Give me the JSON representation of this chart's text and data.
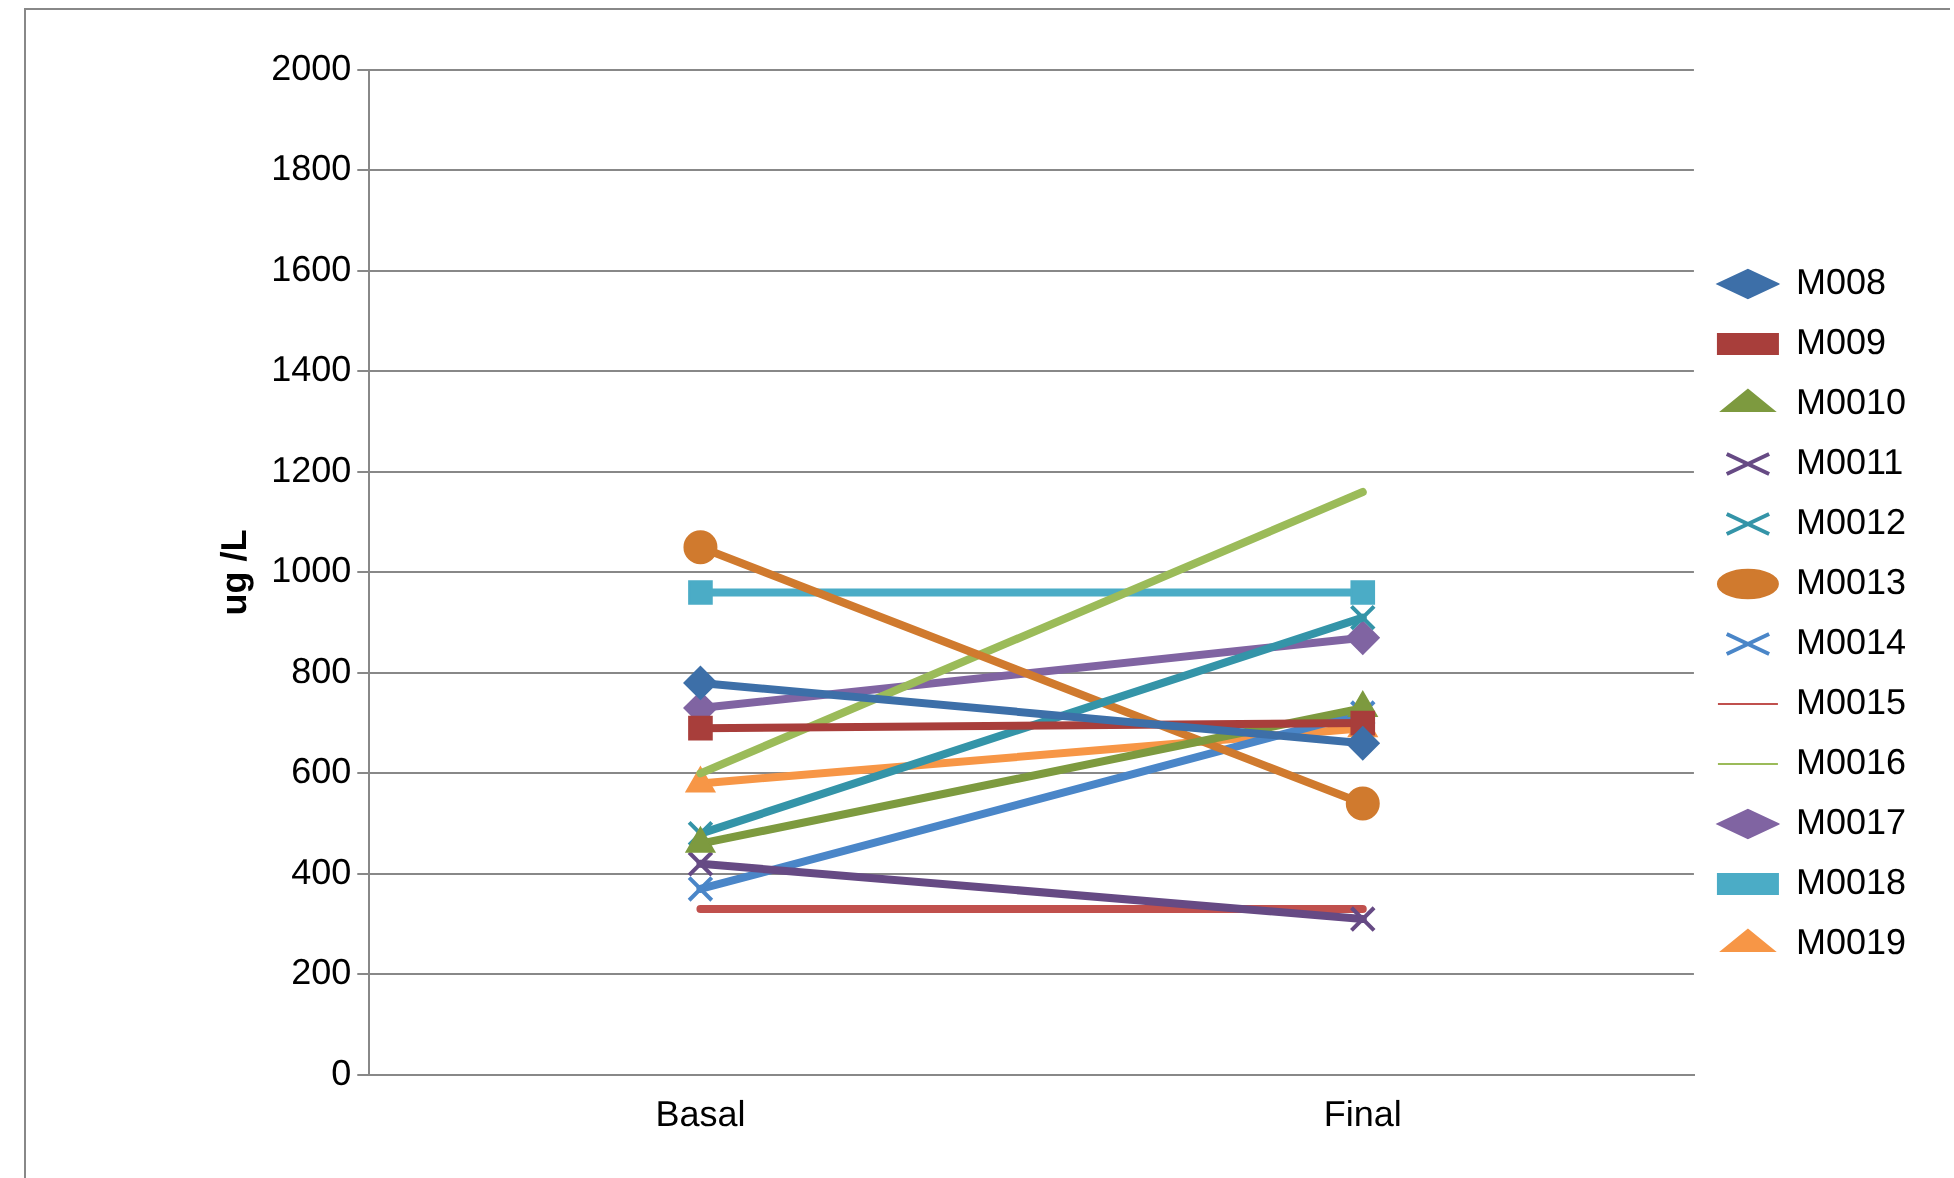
{
  "chart_data": {
    "type": "line",
    "ylabel": "ug /L",
    "categories": [
      "Basal",
      "Final"
    ],
    "ylim": [
      0,
      2000
    ],
    "yticks": [
      0,
      200,
      400,
      600,
      800,
      1000,
      1200,
      1400,
      1600,
      1800,
      2000
    ],
    "grid": "y",
    "legend": "right",
    "line_style": "solid",
    "series": [
      {
        "name": "M008",
        "color": "#3d6fa8",
        "marker": "diamond",
        "values": [
          780,
          660
        ]
      },
      {
        "name": "M009",
        "color": "#a83e3b",
        "marker": "square",
        "values": [
          690,
          700
        ]
      },
      {
        "name": "M0010",
        "color": "#7d9a3f",
        "marker": "triangle",
        "values": [
          460,
          730
        ]
      },
      {
        "name": "M0011",
        "color": "#664a84",
        "marker": "cross",
        "values": [
          420,
          310
        ]
      },
      {
        "name": "M0012",
        "color": "#3494a8",
        "marker": "cross",
        "values": [
          480,
          910
        ]
      },
      {
        "name": "M0013",
        "color": "#d07a2e",
        "marker": "circle",
        "values": [
          1050,
          540
        ]
      },
      {
        "name": "M0014",
        "color": "#4a86c8",
        "marker": "cross",
        "values": [
          370,
          720
        ]
      },
      {
        "name": "M0015",
        "color": "#c0504d",
        "marker": "none",
        "values": [
          330,
          330
        ]
      },
      {
        "name": "M0016",
        "color": "#9bbb59",
        "marker": "none",
        "values": [
          600,
          1160
        ]
      },
      {
        "name": "M0017",
        "color": "#8064a2",
        "marker": "diamond",
        "values": [
          730,
          870
        ]
      },
      {
        "name": "M0018",
        "color": "#4bacc6",
        "marker": "square",
        "values": [
          960,
          960
        ]
      },
      {
        "name": "M0019",
        "color": "#f79646",
        "marker": "triangle",
        "values": [
          580,
          690
        ]
      }
    ]
  }
}
